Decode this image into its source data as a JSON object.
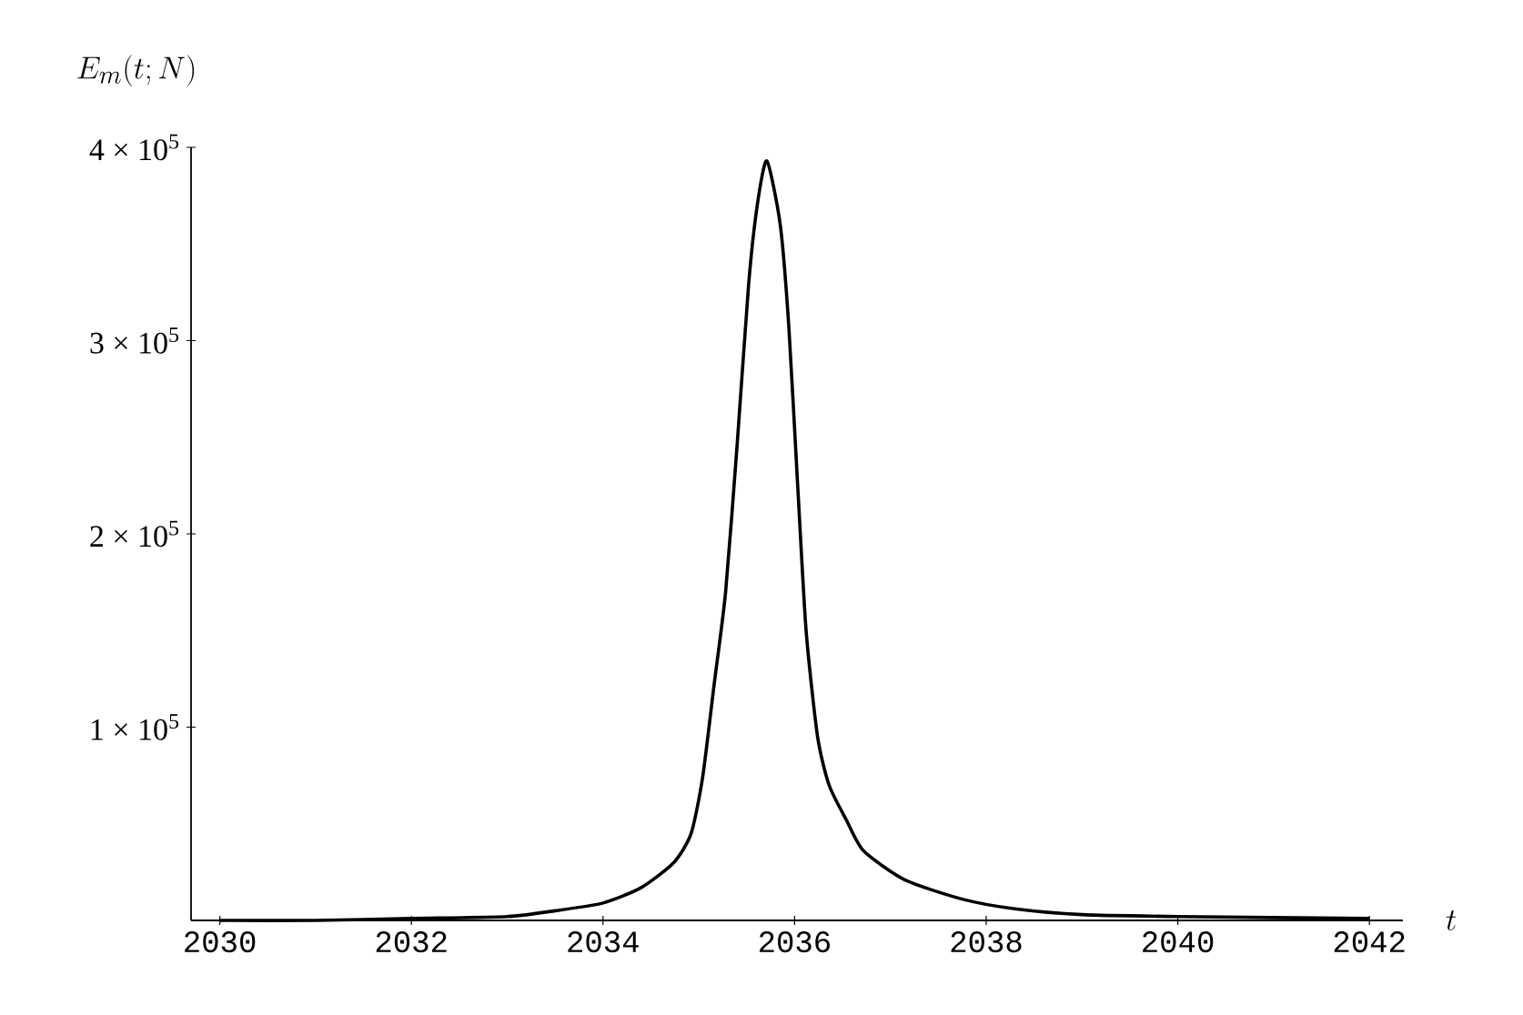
{
  "chart_data": {
    "type": "line",
    "xlabel": "t",
    "ylabel": "E_m(t;N)",
    "x": [
      2030,
      2031,
      2032,
      2033,
      2033.5,
      2034,
      2034.4,
      2034.74,
      2034.92,
      2035.04,
      2035.16,
      2035.28,
      2035.4,
      2035.52,
      2035.61,
      2035.71,
      2035.85,
      2035.94,
      2036.03,
      2036.12,
      2036.24,
      2036.36,
      2036.54,
      2036.72,
      2037.15,
      2037.75,
      2038.3,
      2039,
      2040,
      2042
    ],
    "series": [
      {
        "color": "#000000",
        "values": [
          0,
          0,
          1000,
          2000,
          5000,
          9000,
          17000,
          30000,
          45000,
          74000,
          122000,
          170000,
          246000,
          329000,
          370000,
          393000,
          360000,
          307000,
          227000,
          150000,
          95000,
          70000,
          52000,
          36000,
          21000,
          11000,
          6000,
          3000,
          2000,
          1000
        ]
      }
    ],
    "xlim": [
      2029.7,
      2042.35
    ],
    "ylim": [
      0,
      400000
    ],
    "xticks": [
      2030,
      2032,
      2034,
      2036,
      2038,
      2040,
      2042
    ],
    "yticks": [
      {
        "value": 100000,
        "label": "1 × 10$^{5}$"
      },
      {
        "value": 200000,
        "label": "2 × 10$^{5}$"
      },
      {
        "value": 300000,
        "label": "3 × 10$^{5}$"
      },
      {
        "value": 400000,
        "label": "4 × 10$^{5}$"
      }
    ],
    "grid": false,
    "legend": false,
    "marker": "none",
    "line_style": "solid"
  }
}
